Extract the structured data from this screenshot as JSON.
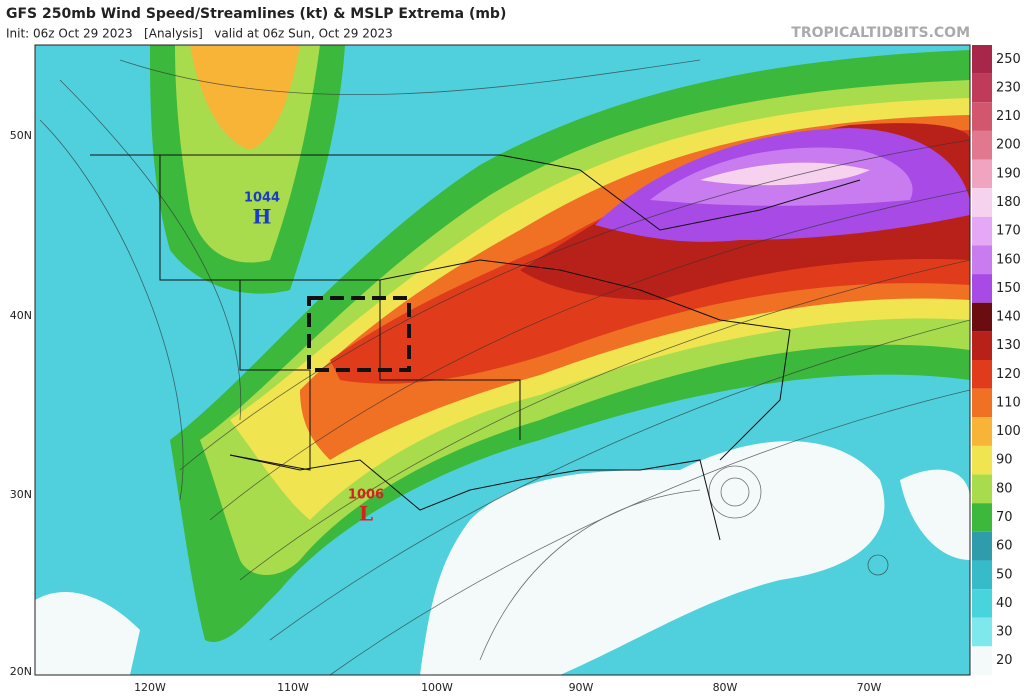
{
  "header": {
    "title": "GFS 250mb Wind Speed/Streamlines (kt) & MSLP Extrema (mb)",
    "subtitle": "Init: 06z Oct 29 2023   [Analysis]   valid at 06z Sun, Oct 29 2023",
    "credit": "TROPICALTIDBITS.COM"
  },
  "colorbar": [
    {
      "value": 250,
      "color": "#a8264a"
    },
    {
      "value": 230,
      "color": "#c03a5a"
    },
    {
      "value": 210,
      "color": "#d2566e"
    },
    {
      "value": 200,
      "color": "#e27890"
    },
    {
      "value": 190,
      "color": "#f0a4c0"
    },
    {
      "value": 180,
      "color": "#f6d2ee"
    },
    {
      "value": 170,
      "color": "#e4a8f6"
    },
    {
      "value": 160,
      "color": "#c87cf0"
    },
    {
      "value": 150,
      "color": "#a74ae6"
    },
    {
      "value": 140,
      "color": "#6a0c10"
    },
    {
      "value": 130,
      "color": "#b8201a"
    },
    {
      "value": 120,
      "color": "#e03c1c"
    },
    {
      "value": 110,
      "color": "#f07024"
    },
    {
      "value": 100,
      "color": "#f8b436"
    },
    {
      "value": 90,
      "color": "#f0e450"
    },
    {
      "value": 80,
      "color": "#a8dc4c"
    },
    {
      "value": 70,
      "color": "#3cb83c"
    },
    {
      "value": 60,
      "color": "#2e9caa"
    },
    {
      "value": 50,
      "color": "#36bcc8"
    },
    {
      "value": 40,
      "color": "#48d4dc"
    },
    {
      "value": 30,
      "color": "#7ee8ec"
    },
    {
      "value": 20,
      "color": "#f4fafa"
    }
  ],
  "latitudes": [
    "50N",
    "40N",
    "30N",
    "20N"
  ],
  "longitudes": [
    "120W",
    "110W",
    "100W",
    "90W",
    "80W",
    "70W"
  ],
  "pressure_centers": [
    {
      "value": "1044",
      "symbol": "H"
    },
    {
      "value": "1006",
      "symbol": "L"
    }
  ]
}
